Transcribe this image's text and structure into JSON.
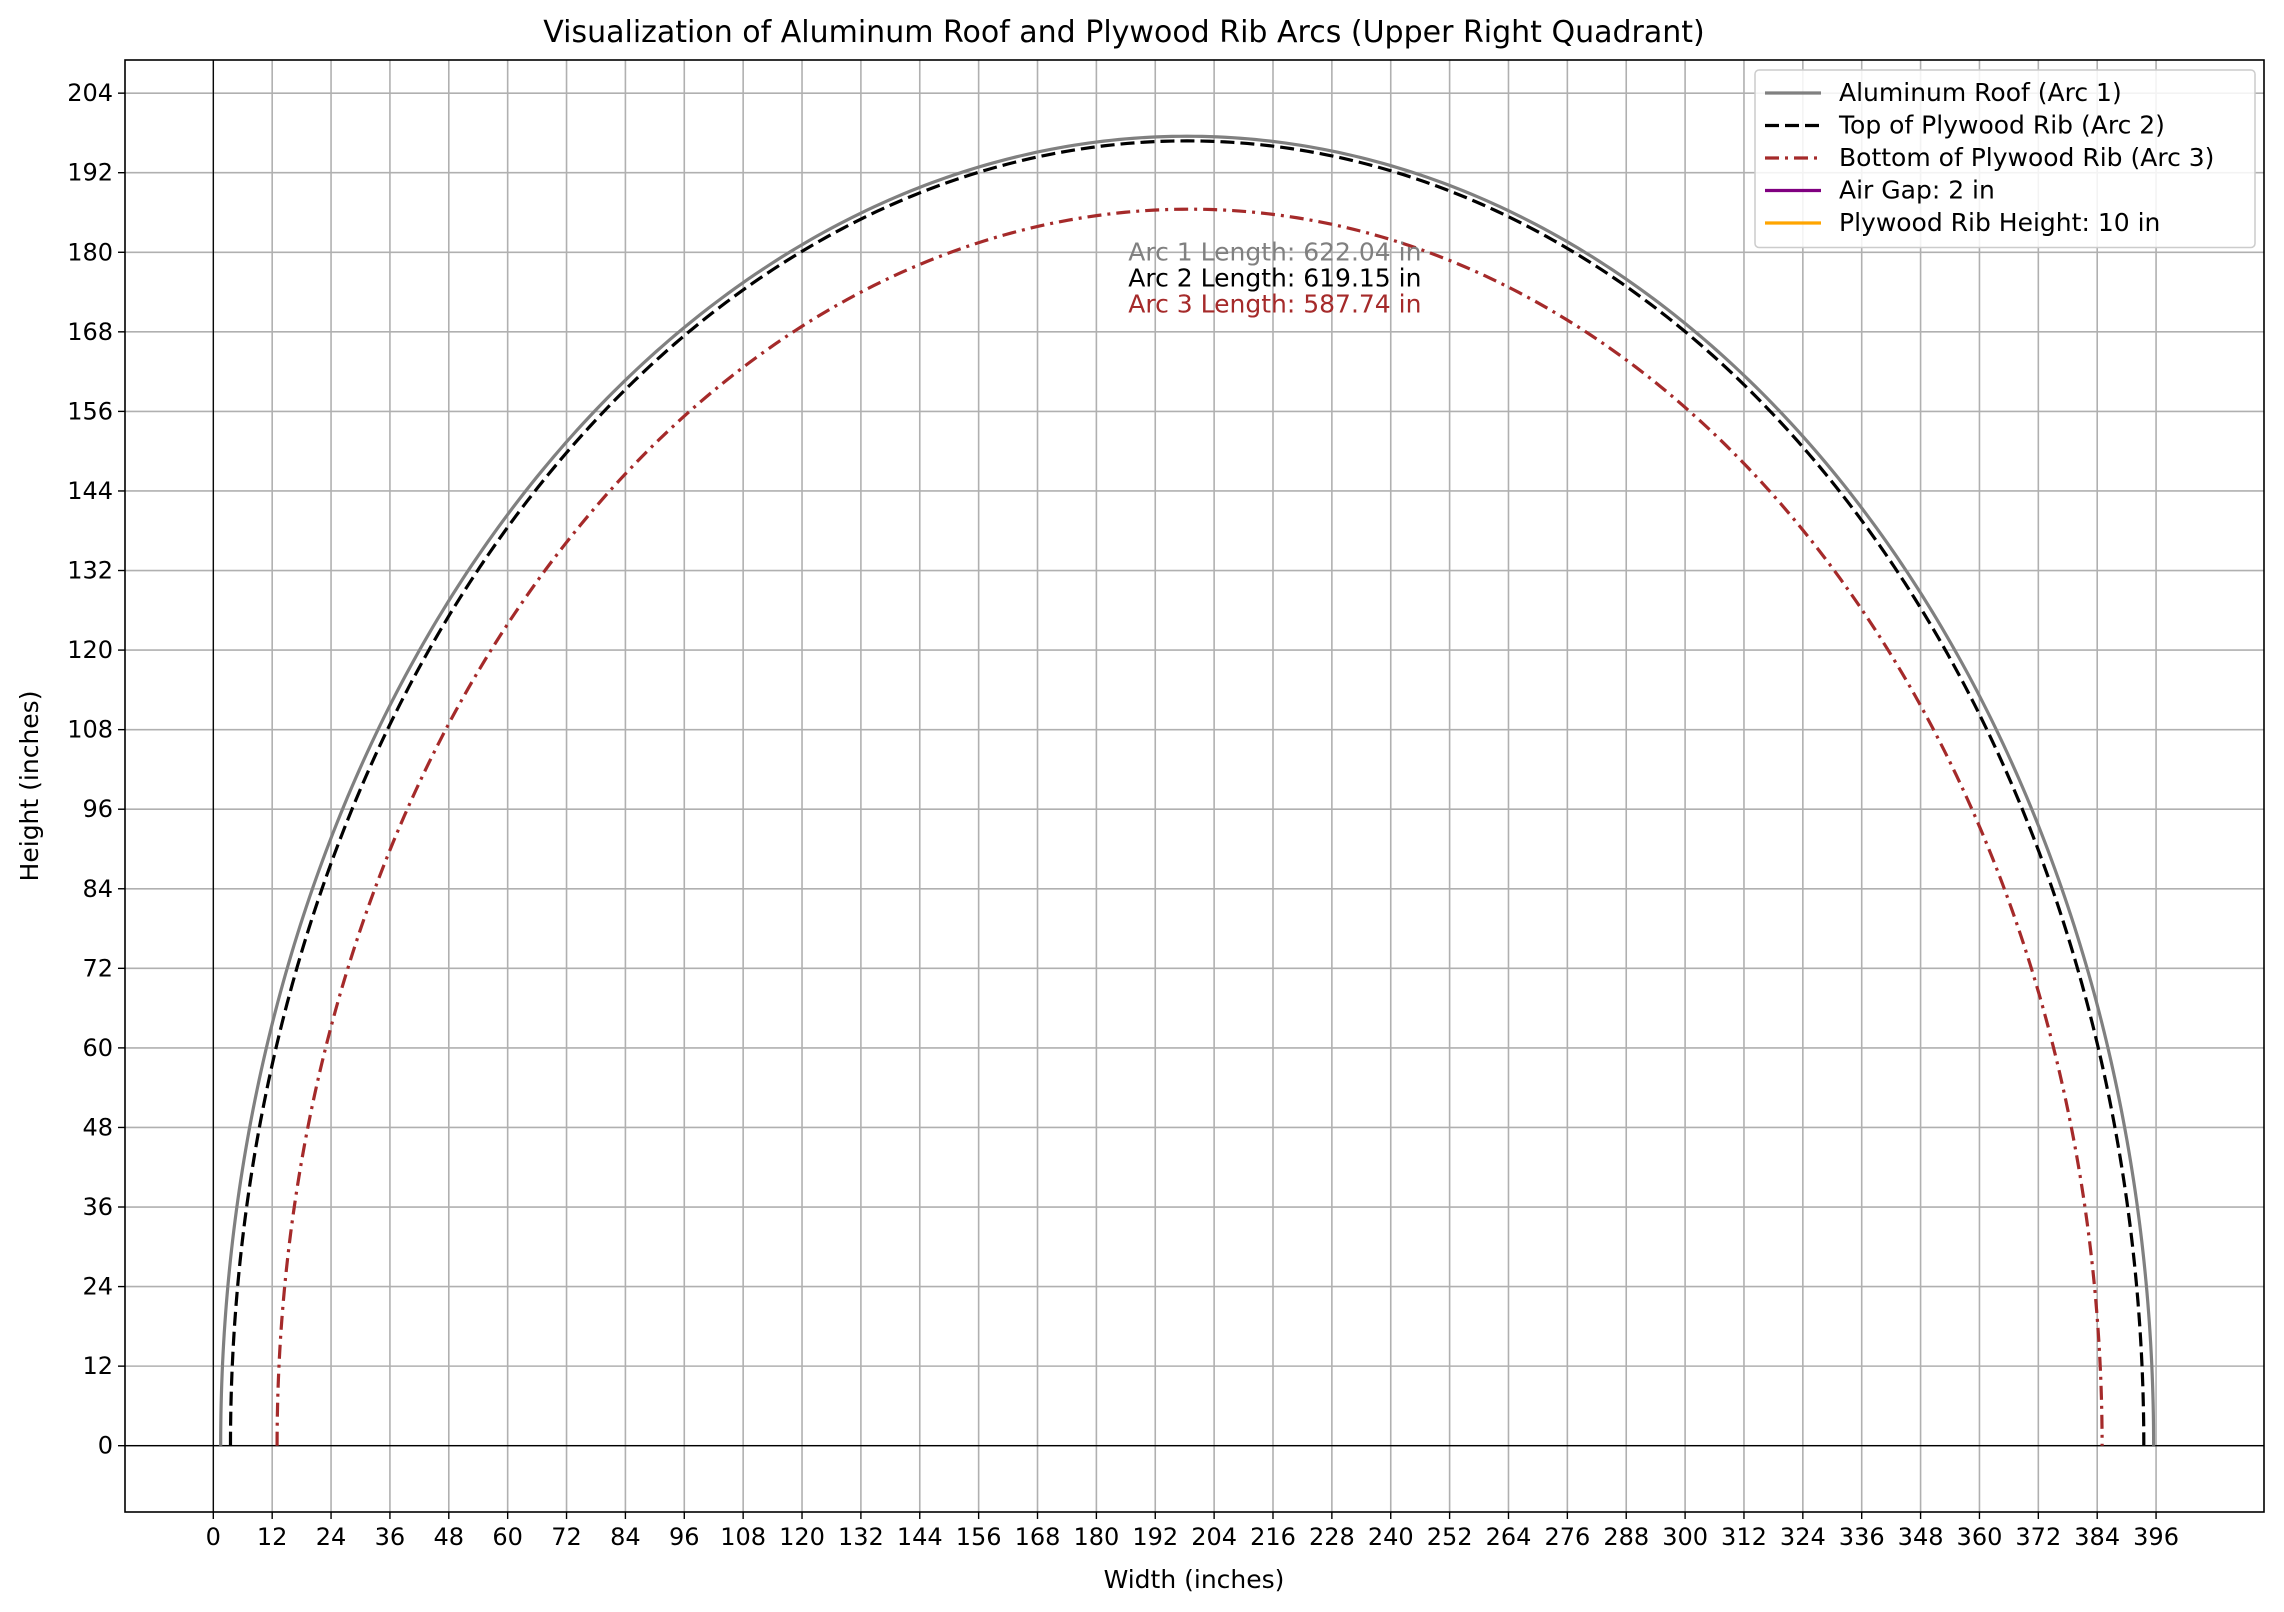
{
  "chart_data": {
    "type": "line",
    "title": "Visualization of Aluminum Roof and Plywood Rib Arcs (Upper Right Quadrant)",
    "xlabel": "Width (inches)",
    "ylabel": "Height (inches)",
    "xlim": [
      -18,
      418
    ],
    "ylim": [
      -10,
      209
    ],
    "xticks": [
      0,
      12,
      24,
      36,
      48,
      60,
      72,
      84,
      96,
      108,
      120,
      132,
      144,
      156,
      168,
      180,
      192,
      204,
      216,
      228,
      240,
      252,
      264,
      276,
      288,
      300,
      312,
      324,
      336,
      348,
      360,
      372,
      384,
      396
    ],
    "yticks": [
      0,
      12,
      24,
      36,
      48,
      60,
      72,
      84,
      96,
      108,
      120,
      132,
      144,
      156,
      168,
      180,
      192,
      204
    ],
    "grid": true,
    "legend_position": "top-right",
    "series": [
      {
        "name": "Aluminum Roof (Arc 1)",
        "color": "#808080",
        "dash": "solid",
        "center_x": 198.5,
        "half_width": 197,
        "peak": 197.5
      },
      {
        "name": "Top of Plywood Rib (Arc 2)",
        "color": "#000000",
        "dash": "dashed",
        "center_x": 198.5,
        "half_width": 195,
        "peak": 196.8
      },
      {
        "name": "Bottom of Plywood Rib (Arc 3)",
        "color": "#a52a2a",
        "dash": "dashdot",
        "center_x": 199,
        "half_width": 186,
        "peak": 186.5
      },
      {
        "name": "Air Gap: 2 in",
        "color": "#800080",
        "dash": "solid",
        "legend_only": true
      },
      {
        "name": "Plywood Rib Height: 10 in",
        "color": "#ffa500",
        "dash": "solid",
        "legend_only": true
      }
    ],
    "annotations": [
      {
        "text": "Arc 1 Length: 622.04 in",
        "color": "#808080"
      },
      {
        "text": "Arc 2 Length: 619.15 in",
        "color": "#000000"
      },
      {
        "text": "Arc 3 Length: 587.74 in",
        "color": "#a52a2a"
      }
    ]
  }
}
